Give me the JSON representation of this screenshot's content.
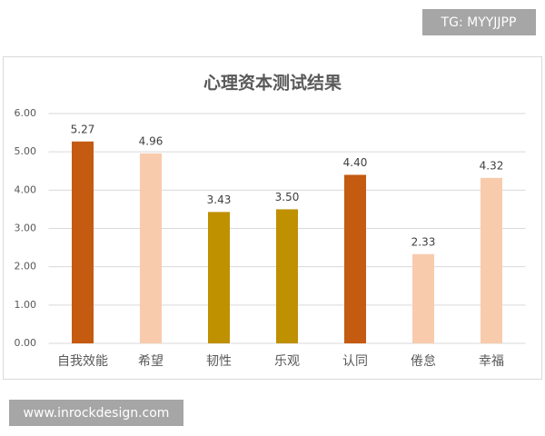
{
  "chart_data": {
    "type": "bar",
    "title": "心理资本测试结果",
    "categories": [
      "自我效能",
      "希望",
      "韧性",
      "乐观",
      "认同",
      "倦怠",
      "幸福"
    ],
    "values": [
      5.27,
      4.96,
      3.43,
      3.5,
      4.4,
      2.33,
      4.32
    ],
    "value_labels": [
      "5.27",
      "4.96",
      "3.43",
      "3.50",
      "4.40",
      "2.33",
      "4.32"
    ],
    "colors": [
      "#c55a11",
      "#f8cbad",
      "#bf9000",
      "#bf9000",
      "#c55a11",
      "#f8cbad",
      "#f8cbad"
    ],
    "ylim": [
      0,
      6
    ],
    "yticks": [
      {
        "value": 0,
        "label": "0.00"
      },
      {
        "value": 1,
        "label": "1.00"
      },
      {
        "value": 2,
        "label": "2.00"
      },
      {
        "value": 3,
        "label": "3.00"
      },
      {
        "value": 4,
        "label": "4.00"
      },
      {
        "value": 5,
        "label": "5.00"
      },
      {
        "value": 6,
        "label": "6.00"
      }
    ],
    "grid": true,
    "annotations": [
      "TG: MYYJJPP",
      "www.inrockdesign.com"
    ]
  }
}
